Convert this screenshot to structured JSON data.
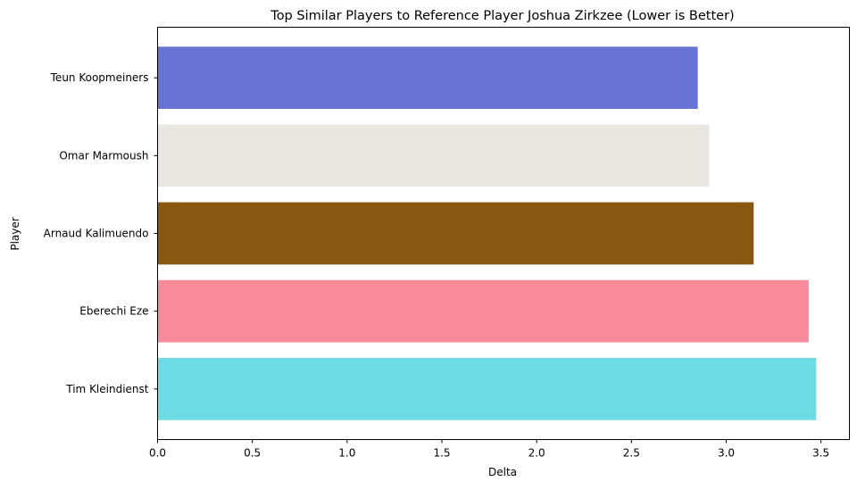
{
  "chart_data": {
    "type": "bar",
    "orientation": "horizontal",
    "title": "Top Similar Players to Reference Player Joshua Zirkzee (Lower is Better)",
    "xlabel": "Delta",
    "ylabel": "Player",
    "xlim": [
      0,
      3.65
    ],
    "xticks": [
      "0.0",
      "0.5",
      "1.0",
      "1.5",
      "2.0",
      "2.5",
      "3.0",
      "3.5"
    ],
    "xtick_values": [
      0,
      0.5,
      1.0,
      1.5,
      2.0,
      2.5,
      3.0,
      3.5
    ],
    "grid": false,
    "bars": [
      {
        "name": "Teun Koopmeiners",
        "value": 2.85,
        "color": "#6874d4"
      },
      {
        "name": "Omar Marmoush",
        "value": 2.91,
        "color": "#e8e7e2"
      },
      {
        "name": "Arnaud Kalimuendo",
        "value": 3.145,
        "color": "#885811"
      },
      {
        "name": "Eberechi Eze",
        "value": 3.435,
        "color": "#f88a99"
      },
      {
        "name": "Tim Kleindienst",
        "value": 3.475,
        "color": "#6edce5"
      }
    ]
  }
}
